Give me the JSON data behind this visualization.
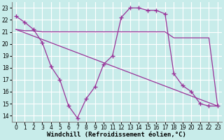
{
  "bg_color": "#c8ecea",
  "grid_color": "#ffffff",
  "line_color": "#993399",
  "marker": "+",
  "markersize": 4,
  "linewidth": 0.9,
  "xlim": [
    -0.5,
    23.5
  ],
  "ylim": [
    13.5,
    23.5
  ],
  "xticks": [
    0,
    1,
    2,
    3,
    4,
    5,
    6,
    7,
    8,
    9,
    10,
    11,
    12,
    13,
    14,
    15,
    16,
    17,
    18,
    19,
    20,
    21,
    22,
    23
  ],
  "yticks": [
    14,
    15,
    16,
    17,
    18,
    19,
    20,
    21,
    22,
    23
  ],
  "xlabel": "Windchill (Refroidissement éolien,°C)",
  "xlabel_fontsize": 6.5,
  "tick_fontsize": 5.5,
  "line1_x": [
    0,
    1,
    2,
    3,
    4,
    5,
    6,
    7,
    8,
    9,
    10,
    11,
    12,
    13,
    14,
    15,
    16,
    17,
    18,
    19,
    20,
    21,
    22,
    23
  ],
  "line1_y": [
    22.3,
    21.8,
    21.2,
    20.1,
    18.1,
    17.0,
    14.8,
    13.8,
    15.4,
    16.4,
    18.3,
    19.0,
    22.2,
    23.0,
    23.0,
    22.8,
    22.8,
    22.5,
    17.5,
    16.5,
    16.0,
    15.0,
    14.8,
    14.8
  ],
  "line2_x": [
    0,
    23
  ],
  "line2_y": [
    21.2,
    14.8
  ],
  "line3_x": [
    0,
    1,
    2,
    3,
    4,
    5,
    6,
    7,
    8,
    9,
    10,
    11,
    12,
    13,
    14,
    15,
    16,
    17,
    18,
    19,
    20,
    21,
    22,
    23
  ],
  "line3_y": [
    21.2,
    21.1,
    21.1,
    21.0,
    21.0,
    21.0,
    21.0,
    21.0,
    21.0,
    21.0,
    21.0,
    21.0,
    21.0,
    21.0,
    21.0,
    21.0,
    21.0,
    21.0,
    20.5,
    20.5,
    20.5,
    20.5,
    20.5,
    14.8
  ]
}
